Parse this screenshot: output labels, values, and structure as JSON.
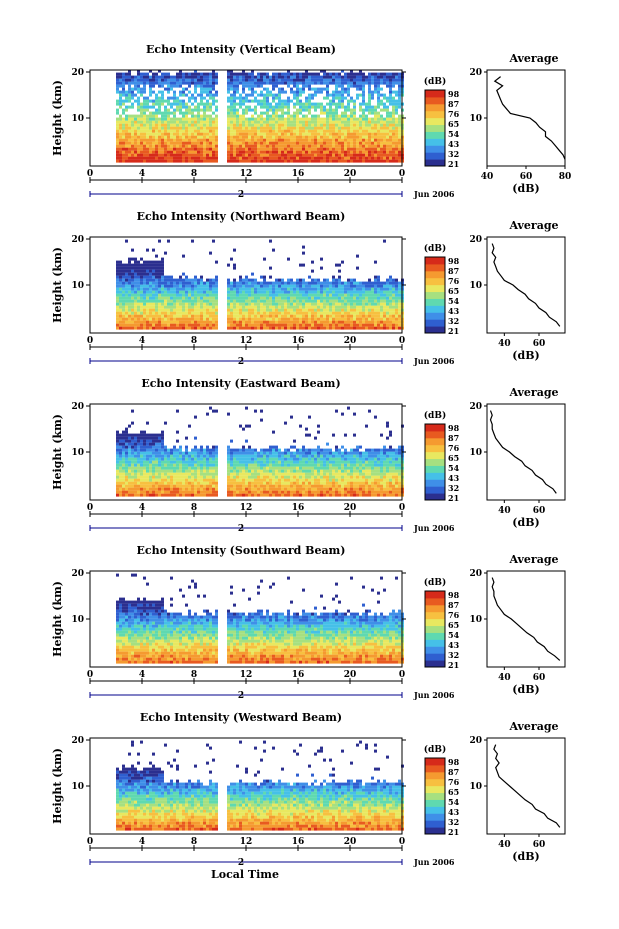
{
  "figure": {
    "xlabel": "Local Time"
  },
  "colorbar": {
    "unit_label": "(dB)",
    "ticks": [
      "98",
      "87",
      "76",
      "65",
      "54",
      "43",
      "32",
      "21"
    ],
    "colors": [
      "#2b2f8f",
      "#2f5fd0",
      "#3f8fe8",
      "#45c0e8",
      "#5fd9b0",
      "#a6e080",
      "#e8e860",
      "#f7c040",
      "#f59a30",
      "#e85a20",
      "#d62a1a"
    ]
  },
  "panels": [
    {
      "title": "Echo Intensity (Vertical Beam)",
      "ylabel": "Height (km)",
      "yticks": [
        "20",
        "10"
      ],
      "xticks": [
        "0",
        "4",
        "8",
        "12",
        "16",
        "20",
        "0"
      ],
      "date_label": "2",
      "month_label": "Jun 2006",
      "avg_title": "Average",
      "avg_xlabel": "(dB)",
      "avg_xticks": [
        "40",
        "60",
        "80"
      ],
      "avg_yticks": [
        "20",
        "10"
      ],
      "top_km": 19.5,
      "top_km_early": 19.5
    },
    {
      "title": "Echo Intensity (Northward Beam)",
      "ylabel": "Height (km)",
      "yticks": [
        "20",
        "10"
      ],
      "xticks": [
        "0",
        "4",
        "8",
        "12",
        "16",
        "20",
        "0"
      ],
      "date_label": "2",
      "month_label": "Jun 2006",
      "avg_title": "Average",
      "avg_xlabel": "(dB)",
      "avg_xticks": [
        "40",
        "60"
      ],
      "avg_yticks": [
        "20",
        "10"
      ],
      "top_km": 11.0,
      "top_km_early": 15.0
    },
    {
      "title": "Echo Intensity (Eastward Beam)",
      "ylabel": "Height (km)",
      "yticks": [
        "20",
        "10"
      ],
      "xticks": [
        "0",
        "4",
        "8",
        "12",
        "16",
        "20",
        "0"
      ],
      "date_label": "2",
      "month_label": "Jun 2006",
      "avg_title": "Average",
      "avg_xlabel": "(dB)",
      "avg_xticks": [
        "40",
        "60"
      ],
      "avg_yticks": [
        "20",
        "10"
      ],
      "top_km": 10.5,
      "top_km_early": 14.0
    },
    {
      "title": "Echo Intensity (Southward Beam)",
      "ylabel": "Height (km)",
      "yticks": [
        "20",
        "10"
      ],
      "xticks": [
        "0",
        "4",
        "8",
        "12",
        "16",
        "20",
        "0"
      ],
      "date_label": "2",
      "month_label": "Jun 2006",
      "avg_title": "Average",
      "avg_xlabel": "(dB)",
      "avg_xticks": [
        "40",
        "60"
      ],
      "avg_yticks": [
        "20",
        "10"
      ],
      "top_km": 11.0,
      "top_km_early": 14.0
    },
    {
      "title": "Echo Intensity (Westward Beam)",
      "ylabel": "Height (km)",
      "yticks": [
        "20",
        "10"
      ],
      "xticks": [
        "0",
        "4",
        "8",
        "12",
        "16",
        "20",
        "0"
      ],
      "date_label": "2",
      "month_label": "Jun 2006",
      "avg_title": "Average",
      "avg_xlabel": "(dB)",
      "avg_xticks": [
        "40",
        "60"
      ],
      "avg_yticks": [
        "20",
        "10"
      ],
      "top_km": 10.5,
      "top_km_early": 13.5
    }
  ],
  "chart_data": [
    {
      "type": "heatmap",
      "title": "Echo Intensity (Vertical Beam)",
      "ylabel": "Height (km)",
      "xlabel": "Local Time",
      "xlim": [
        0,
        24
      ],
      "ylim": [
        0,
        20
      ],
      "data_gaps_hours": [
        [
          0,
          2
        ],
        [
          9.7,
          10.5
        ]
      ],
      "color_unit": "dB",
      "color_ticks": [
        98,
        87,
        76,
        65,
        54,
        43,
        32,
        21
      ],
      "average_profile": {
        "title": "Average",
        "xlabel": "(dB)",
        "xlim": [
          40,
          80
        ],
        "height_km": [
          1,
          2,
          3,
          4,
          5,
          6,
          7,
          8,
          9,
          10,
          11,
          12,
          13,
          14,
          15,
          16,
          17,
          18,
          19
        ],
        "db": [
          80,
          79,
          77,
          75,
          73,
          70,
          70,
          67,
          65,
          62,
          52,
          50,
          48,
          47,
          46,
          45,
          48,
          44,
          47
        ]
      }
    },
    {
      "type": "heatmap",
      "title": "Echo Intensity (Northward Beam)",
      "ylabel": "Height (km)",
      "xlim": [
        0,
        24
      ],
      "ylim": [
        0,
        20
      ],
      "data_gaps_hours": [
        [
          0,
          2
        ],
        [
          9.7,
          10.5
        ]
      ],
      "color_unit": "dB",
      "color_ticks": [
        98,
        87,
        76,
        65,
        54,
        43,
        32,
        21
      ],
      "average_profile": {
        "title": "Average",
        "xlabel": "(dB)",
        "xlim": [
          30,
          75
        ],
        "height_km": [
          1,
          2,
          3,
          4,
          5,
          6,
          7,
          8,
          9,
          10,
          11,
          12,
          13,
          14,
          15,
          16,
          17,
          18,
          19
        ],
        "db": [
          72,
          70,
          66,
          64,
          60,
          58,
          54,
          52,
          48,
          45,
          40,
          38,
          36,
          35,
          34,
          35,
          33,
          34,
          33
        ]
      }
    },
    {
      "type": "heatmap",
      "title": "Echo Intensity (Eastward Beam)",
      "ylabel": "Height (km)",
      "xlim": [
        0,
        24
      ],
      "ylim": [
        0,
        20
      ],
      "data_gaps_hours": [
        [
          0,
          2
        ],
        [
          9.7,
          10.5
        ]
      ],
      "color_unit": "dB",
      "color_ticks": [
        98,
        87,
        76,
        65,
        54,
        43,
        32,
        21
      ],
      "average_profile": {
        "title": "Average",
        "xlabel": "(dB)",
        "xlim": [
          30,
          75
        ],
        "height_km": [
          1,
          2,
          3,
          4,
          5,
          6,
          7,
          8,
          9,
          10,
          11,
          12,
          13,
          14,
          15,
          16,
          17,
          18,
          19
        ],
        "db": [
          70,
          68,
          64,
          62,
          58,
          56,
          52,
          50,
          46,
          43,
          39,
          37,
          35,
          34,
          33,
          33,
          32,
          33,
          32
        ]
      }
    },
    {
      "type": "heatmap",
      "title": "Echo Intensity (Southward Beam)",
      "ylabel": "Height (km)",
      "xlim": [
        0,
        24
      ],
      "ylim": [
        0,
        20
      ],
      "data_gaps_hours": [
        [
          0,
          2
        ],
        [
          9.7,
          10.5
        ]
      ],
      "color_unit": "dB",
      "color_ticks": [
        98,
        87,
        76,
        65,
        54,
        43,
        32,
        21
      ],
      "average_profile": {
        "title": "Average",
        "xlabel": "(dB)",
        "xlim": [
          30,
          75
        ],
        "height_km": [
          1,
          2,
          3,
          4,
          5,
          6,
          7,
          8,
          9,
          10,
          11,
          12,
          13,
          14,
          15,
          16,
          17,
          18,
          19
        ],
        "db": [
          72,
          69,
          65,
          63,
          59,
          57,
          53,
          50,
          47,
          44,
          40,
          38,
          36,
          35,
          34,
          34,
          33,
          34,
          33
        ]
      }
    },
    {
      "type": "heatmap",
      "title": "Echo Intensity (Westward Beam)",
      "ylabel": "Height (km)",
      "xlim": [
        0,
        24
      ],
      "ylim": [
        0,
        20
      ],
      "data_gaps_hours": [
        [
          0,
          2
        ],
        [
          9.7,
          10.5
        ]
      ],
      "color_unit": "dB",
      "color_ticks": [
        98,
        87,
        76,
        65,
        54,
        43,
        32,
        21
      ],
      "average_profile": {
        "title": "Average",
        "xlabel": "(dB)",
        "xlim": [
          30,
          75
        ],
        "height_km": [
          1,
          2,
          3,
          4,
          5,
          6,
          7,
          8,
          9,
          10,
          11,
          12,
          13,
          14,
          15,
          16,
          17,
          18,
          19
        ],
        "db": [
          72,
          70,
          65,
          63,
          58,
          56,
          52,
          49,
          46,
          43,
          40,
          37,
          36,
          35,
          37,
          35,
          36,
          34,
          35
        ]
      }
    }
  ]
}
